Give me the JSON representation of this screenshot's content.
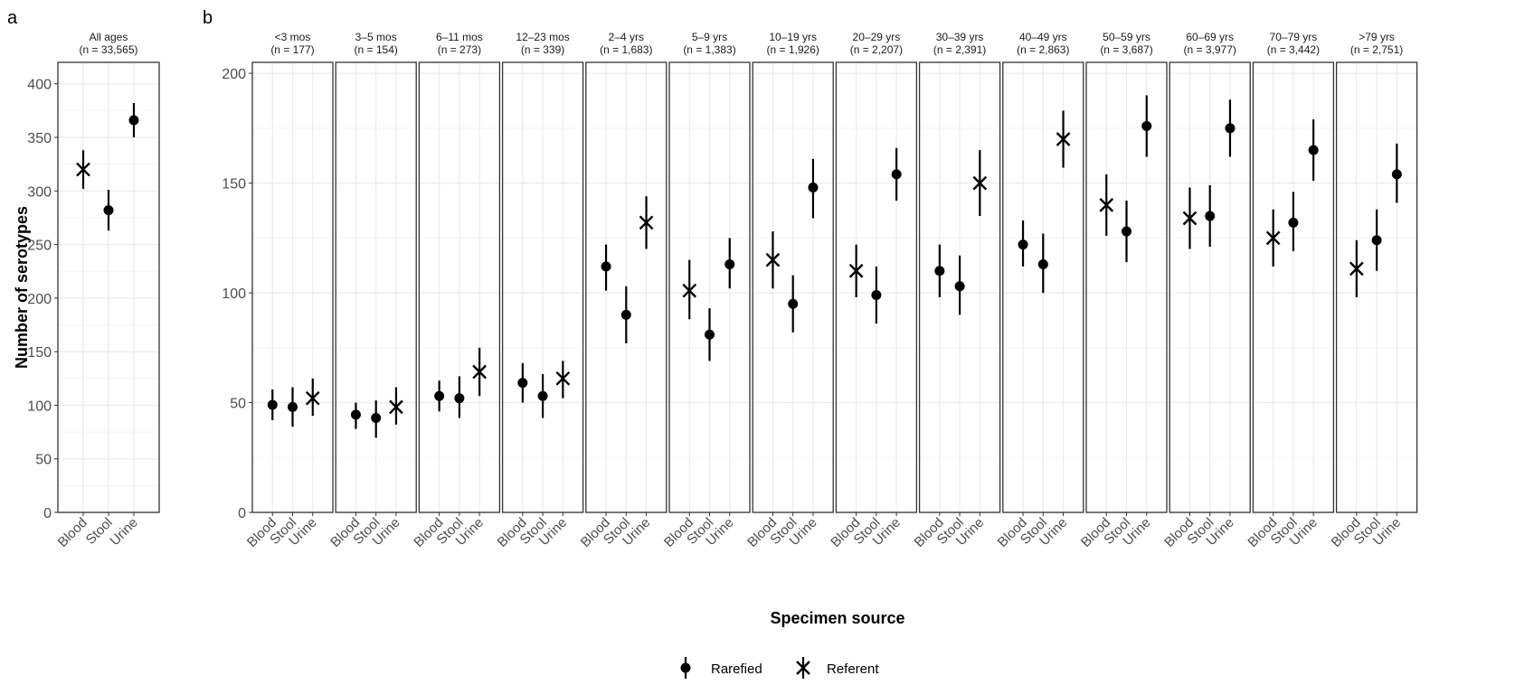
{
  "figure": {
    "panel_a_label": "a",
    "panel_b_label": "b",
    "y_axis_label": "Number of serotypes",
    "x_axis_label": "Specimen source",
    "legend": {
      "rarefied_label": "Rarefied",
      "referent_label": "Referent",
      "placement": "bottom"
    }
  },
  "colors": {
    "marks": "#000000",
    "panel_border": "#333333",
    "grid_major": "#ebebeb",
    "grid_minor": "#f5f5f5",
    "text": "#4d4d4d"
  },
  "chart_data": [
    {
      "type": "scatter",
      "panel": "a",
      "facet_title": [
        "All ages",
        "(n = 33,565)"
      ],
      "categories": [
        "Blood",
        "Stool",
        "Urine"
      ],
      "ylabel": "Number of serotypes",
      "ylim": [
        0,
        420
      ],
      "yticks": [
        0,
        50,
        100,
        150,
        200,
        250,
        300,
        350,
        400
      ],
      "grid": true,
      "points": [
        {
          "category": "Blood",
          "marker": "Referent",
          "value": 320,
          "low": 302,
          "high": 338
        },
        {
          "category": "Stool",
          "marker": "Rarefied",
          "value": 282,
          "low": 263,
          "high": 301
        },
        {
          "category": "Urine",
          "marker": "Rarefied",
          "value": 366,
          "low": 350,
          "high": 382
        }
      ]
    },
    {
      "type": "scatter",
      "panel": "b",
      "xlabel": "Specimen source",
      "categories": [
        "Blood",
        "Stool",
        "Urine"
      ],
      "ylim": [
        0,
        205
      ],
      "yticks": [
        0,
        50,
        100,
        150,
        200
      ],
      "grid": true,
      "facets": [
        {
          "title": [
            "<3 mos",
            "(n =  177)"
          ],
          "points": [
            {
              "category": "Blood",
              "marker": "Rarefied",
              "value": 49,
              "low": 42,
              "high": 56
            },
            {
              "category": "Stool",
              "marker": "Rarefied",
              "value": 48,
              "low": 39,
              "high": 57
            },
            {
              "category": "Urine",
              "marker": "Referent",
              "value": 52,
              "low": 44,
              "high": 61
            }
          ]
        },
        {
          "title": [
            "3–5 mos",
            "(n =  154)"
          ],
          "points": [
            {
              "category": "Blood",
              "marker": "Rarefied",
              "value": 44.5,
              "low": 38,
              "high": 50
            },
            {
              "category": "Stool",
              "marker": "Rarefied",
              "value": 43,
              "low": 34,
              "high": 51
            },
            {
              "category": "Urine",
              "marker": "Referent",
              "value": 48,
              "low": 40,
              "high": 57
            }
          ]
        },
        {
          "title": [
            "6–11 mos",
            "(n =  273)"
          ],
          "points": [
            {
              "category": "Blood",
              "marker": "Rarefied",
              "value": 53,
              "low": 46,
              "high": 60
            },
            {
              "category": "Stool",
              "marker": "Rarefied",
              "value": 52,
              "low": 43,
              "high": 62
            },
            {
              "category": "Urine",
              "marker": "Referent",
              "value": 64,
              "low": 53,
              "high": 75
            }
          ]
        },
        {
          "title": [
            "12–23 mos",
            "(n =  339)"
          ],
          "points": [
            {
              "category": "Blood",
              "marker": "Rarefied",
              "value": 59,
              "low": 50,
              "high": 68
            },
            {
              "category": "Stool",
              "marker": "Rarefied",
              "value": 53,
              "low": 43,
              "high": 63
            },
            {
              "category": "Urine",
              "marker": "Referent",
              "value": 61,
              "low": 52,
              "high": 69
            }
          ]
        },
        {
          "title": [
            "2–4 yrs",
            "(n = 1,683)"
          ],
          "points": [
            {
              "category": "Blood",
              "marker": "Rarefied",
              "value": 112,
              "low": 101,
              "high": 122
            },
            {
              "category": "Stool",
              "marker": "Rarefied",
              "value": 90,
              "low": 77,
              "high": 103
            },
            {
              "category": "Urine",
              "marker": "Referent",
              "value": 132,
              "low": 120,
              "high": 144
            }
          ]
        },
        {
          "title": [
            "5–9 yrs",
            "(n = 1,383)"
          ],
          "points": [
            {
              "category": "Blood",
              "marker": "Referent",
              "value": 101,
              "low": 88,
              "high": 115
            },
            {
              "category": "Stool",
              "marker": "Rarefied",
              "value": 81,
              "low": 69,
              "high": 93
            },
            {
              "category": "Urine",
              "marker": "Rarefied",
              "value": 113,
              "low": 102,
              "high": 125
            }
          ]
        },
        {
          "title": [
            "10–19 yrs",
            "(n = 1,926)"
          ],
          "points": [
            {
              "category": "Blood",
              "marker": "Referent",
              "value": 115,
              "low": 102,
              "high": 128
            },
            {
              "category": "Stool",
              "marker": "Rarefied",
              "value": 95,
              "low": 82,
              "high": 108
            },
            {
              "category": "Urine",
              "marker": "Rarefied",
              "value": 148,
              "low": 134,
              "high": 161
            }
          ]
        },
        {
          "title": [
            "20–29 yrs",
            "(n = 2,207)"
          ],
          "points": [
            {
              "category": "Blood",
              "marker": "Referent",
              "value": 110,
              "low": 98,
              "high": 122
            },
            {
              "category": "Stool",
              "marker": "Rarefied",
              "value": 99,
              "low": 86,
              "high": 112
            },
            {
              "category": "Urine",
              "marker": "Rarefied",
              "value": 154,
              "low": 142,
              "high": 166
            }
          ]
        },
        {
          "title": [
            "30–39 yrs",
            "(n = 2,391)"
          ],
          "points": [
            {
              "category": "Blood",
              "marker": "Rarefied",
              "value": 110,
              "low": 98,
              "high": 122
            },
            {
              "category": "Stool",
              "marker": "Rarefied",
              "value": 103,
              "low": 90,
              "high": 117
            },
            {
              "category": "Urine",
              "marker": "Referent",
              "value": 150,
              "low": 135,
              "high": 165
            }
          ]
        },
        {
          "title": [
            "40–49 yrs",
            "(n = 2,863)"
          ],
          "points": [
            {
              "category": "Blood",
              "marker": "Rarefied",
              "value": 122,
              "low": 112,
              "high": 133
            },
            {
              "category": "Stool",
              "marker": "Rarefied",
              "value": 113,
              "low": 100,
              "high": 127
            },
            {
              "category": "Urine",
              "marker": "Referent",
              "value": 170,
              "low": 157,
              "high": 183
            }
          ]
        },
        {
          "title": [
            "50–59 yrs",
            "(n = 3,687)"
          ],
          "points": [
            {
              "category": "Blood",
              "marker": "Referent",
              "value": 140,
              "low": 126,
              "high": 154
            },
            {
              "category": "Stool",
              "marker": "Rarefied",
              "value": 128,
              "low": 114,
              "high": 142
            },
            {
              "category": "Urine",
              "marker": "Rarefied",
              "value": 176,
              "low": 162,
              "high": 190
            }
          ]
        },
        {
          "title": [
            "60–69 yrs",
            "(n = 3,977)"
          ],
          "points": [
            {
              "category": "Blood",
              "marker": "Referent",
              "value": 134,
              "low": 120,
              "high": 148
            },
            {
              "category": "Stool",
              "marker": "Rarefied",
              "value": 135,
              "low": 121,
              "high": 149
            },
            {
              "category": "Urine",
              "marker": "Rarefied",
              "value": 175,
              "low": 162,
              "high": 188
            }
          ]
        },
        {
          "title": [
            "70–79 yrs",
            "(n = 3,442)"
          ],
          "points": [
            {
              "category": "Blood",
              "marker": "Referent",
              "value": 125,
              "low": 112,
              "high": 138
            },
            {
              "category": "Stool",
              "marker": "Rarefied",
              "value": 132,
              "low": 119,
              "high": 146
            },
            {
              "category": "Urine",
              "marker": "Rarefied",
              "value": 165,
              "low": 151,
              "high": 179
            }
          ]
        },
        {
          "title": [
            ">79 yrs",
            "(n = 2,751)"
          ],
          "points": [
            {
              "category": "Blood",
              "marker": "Referent",
              "value": 111,
              "low": 98,
              "high": 124
            },
            {
              "category": "Stool",
              "marker": "Rarefied",
              "value": 124,
              "low": 110,
              "high": 138
            },
            {
              "category": "Urine",
              "marker": "Rarefied",
              "value": 154,
              "low": 141,
              "high": 168
            }
          ]
        }
      ]
    }
  ]
}
